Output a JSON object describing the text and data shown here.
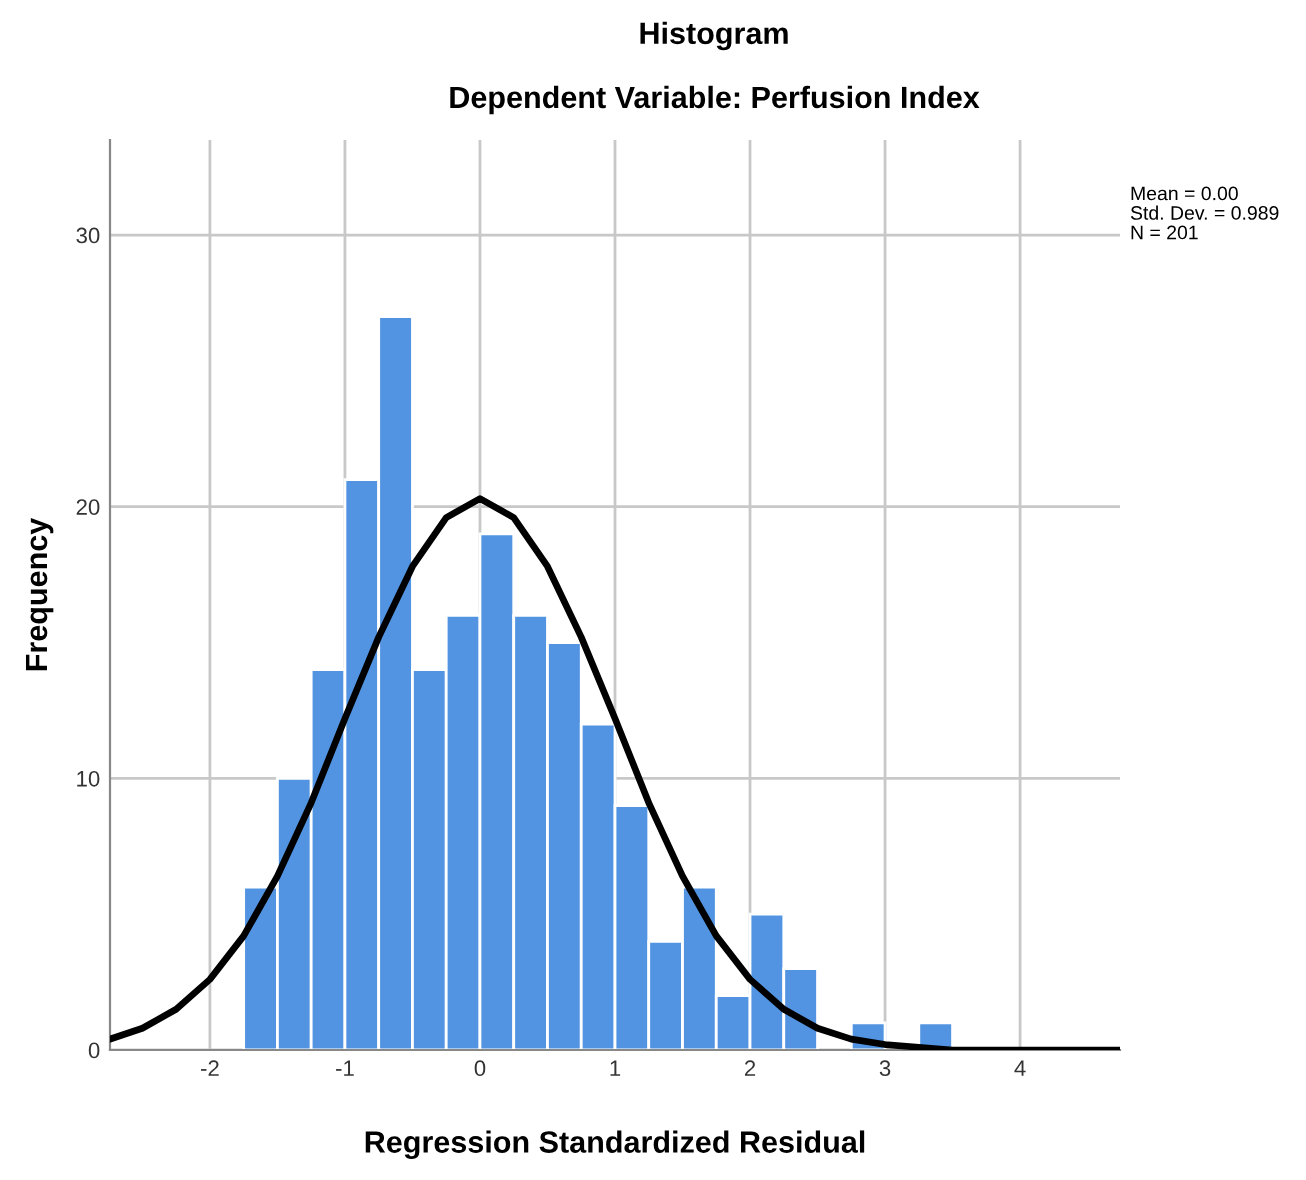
{
  "chart_data": {
    "type": "histogram",
    "title": "Histogram",
    "subtitle": "Dependent Variable: Perfusion Index",
    "xlabel": "Regression Standardized Residual",
    "ylabel": "Frequency",
    "bins": [
      -1.75,
      -1.5,
      -1.25,
      -1.0,
      -0.75,
      -0.5,
      -0.25,
      0.0,
      0.25,
      0.5,
      0.75,
      1.0,
      1.25,
      1.5,
      1.75,
      2.0,
      2.25,
      2.5,
      2.75,
      3.0,
      3.25,
      3.5
    ],
    "values": [
      6,
      10,
      14,
      21,
      27,
      14,
      16,
      19,
      16,
      15,
      12,
      9,
      4,
      6,
      2,
      5,
      3,
      0,
      1,
      0,
      1
    ],
    "color": "#5294e2",
    "series": [
      {
        "type": "line",
        "color": "#000000",
        "x": [
          -2.74,
          -2.5,
          -2.25,
          -2.0,
          -1.75,
          -1.5,
          -1.25,
          -1.0,
          -0.75,
          -0.5,
          -0.25,
          0.0,
          0.25,
          0.5,
          0.75,
          1.0,
          1.25,
          1.5,
          1.75,
          2.0,
          2.25,
          2.5,
          2.75,
          3.0,
          3.5,
          4.0,
          4.74
        ],
        "values": [
          0.4,
          0.8,
          1.5,
          2.6,
          4.2,
          6.4,
          9.1,
          12.2,
          15.2,
          17.8,
          19.6,
          20.3,
          19.6,
          17.8,
          15.2,
          12.2,
          9.1,
          6.4,
          4.2,
          2.6,
          1.5,
          0.8,
          0.4,
          0.2,
          0.0,
          0.0,
          0.0
        ]
      }
    ],
    "xlim": [
      -2.74,
      4.74
    ],
    "ylim": [
      0,
      33.5
    ],
    "xticks": [
      -2,
      -1,
      0,
      1,
      2,
      3,
      4
    ],
    "yticks": [
      0,
      10,
      20,
      30
    ],
    "grid": true,
    "annotations": [
      "Mean = 0.00\nStd. Dev. = 0.989\nN = 201"
    ]
  }
}
